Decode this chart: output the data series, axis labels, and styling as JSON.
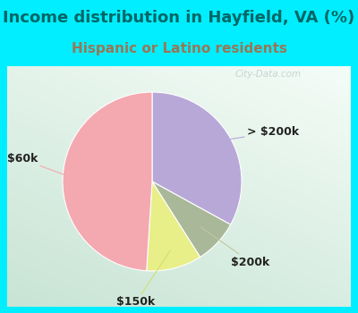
{
  "title": "Income distribution in Hayfield, VA (%)",
  "subtitle": "Hispanic or Latino residents",
  "title_color": "#006666",
  "subtitle_color": "#997755",
  "bg_color": "#00eeff",
  "chart_bg_from": "#f0faf5",
  "chart_bg_to": "#c8e8d8",
  "labels": [
    "> $200k",
    "$200k",
    "$150k",
    "$60k"
  ],
  "values": [
    33,
    8,
    10,
    49
  ],
  "colors": [
    "#b8a8d8",
    "#a8b898",
    "#e8ee88",
    "#f4a8b0"
  ],
  "line_colors": [
    "#b8a8d8",
    "#c0c8a0",
    "#d0e070",
    "#f4a8b0"
  ],
  "watermark": "City-Data.com",
  "startangle": 90,
  "label_fontsize": 9,
  "title_fontsize": 13,
  "subtitle_fontsize": 11,
  "label_color": "#222222"
}
